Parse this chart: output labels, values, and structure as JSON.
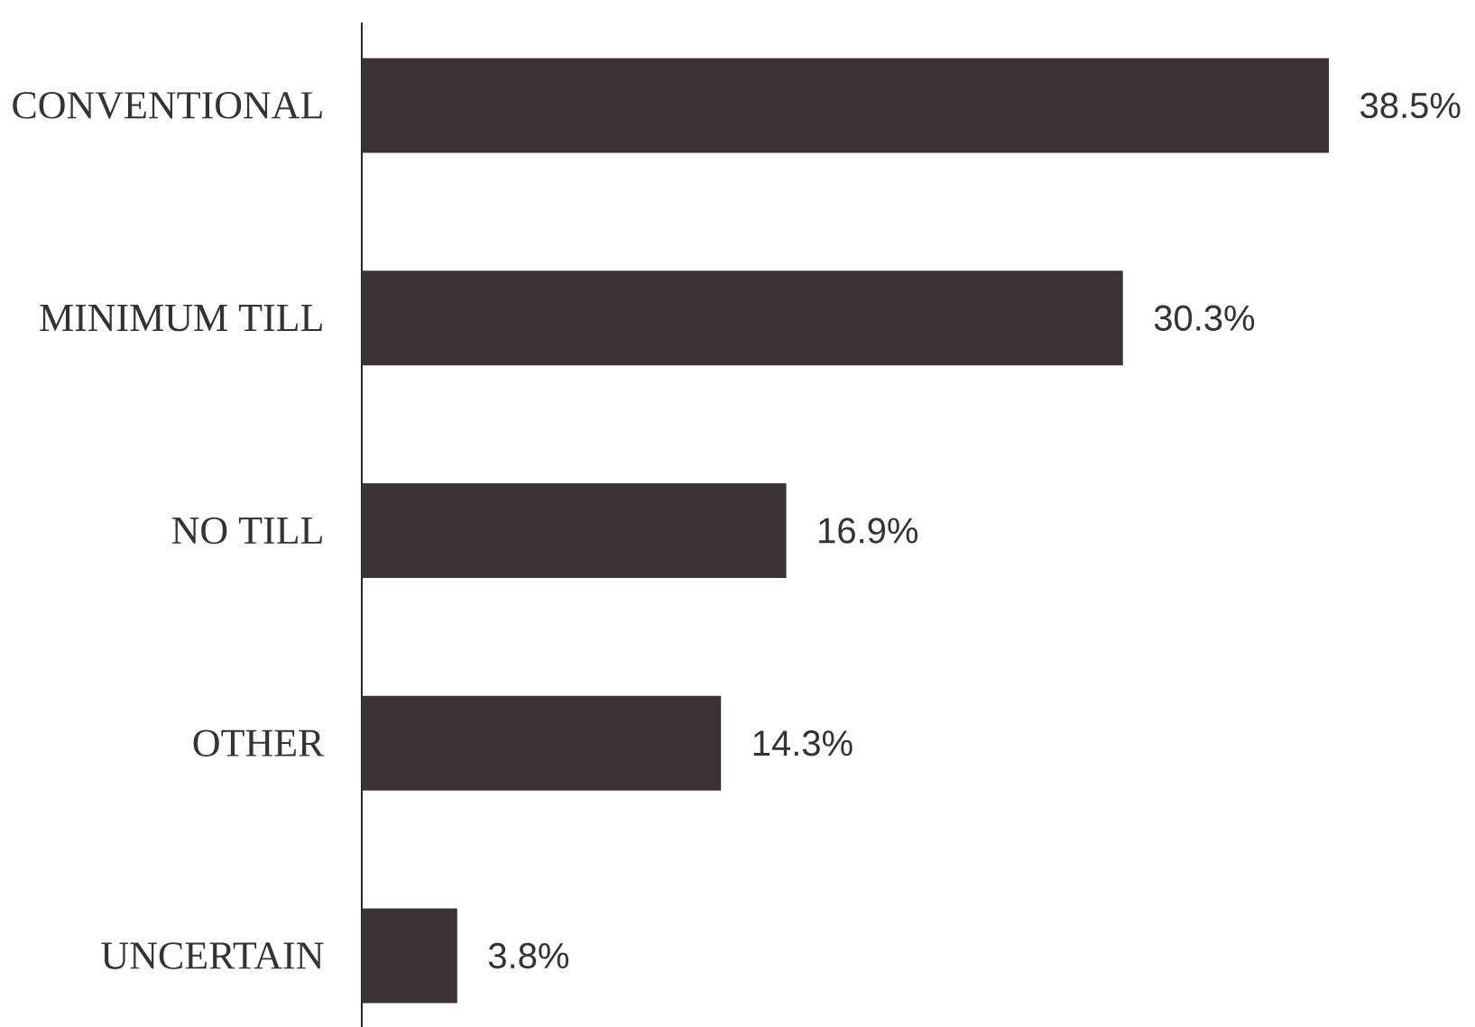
{
  "chart_data": {
    "type": "bar",
    "orientation": "horizontal",
    "categories": [
      "CONVENTIONAL",
      "MINIMUM TILL",
      "NO TILL",
      "OTHER",
      "UNCERTAIN"
    ],
    "values": [
      38.5,
      30.3,
      16.9,
      14.3,
      3.8
    ],
    "value_labels": [
      "38.5%",
      "30.3%",
      "16.9%",
      "14.3%",
      "3.8%"
    ],
    "color": "#3a3234"
  }
}
